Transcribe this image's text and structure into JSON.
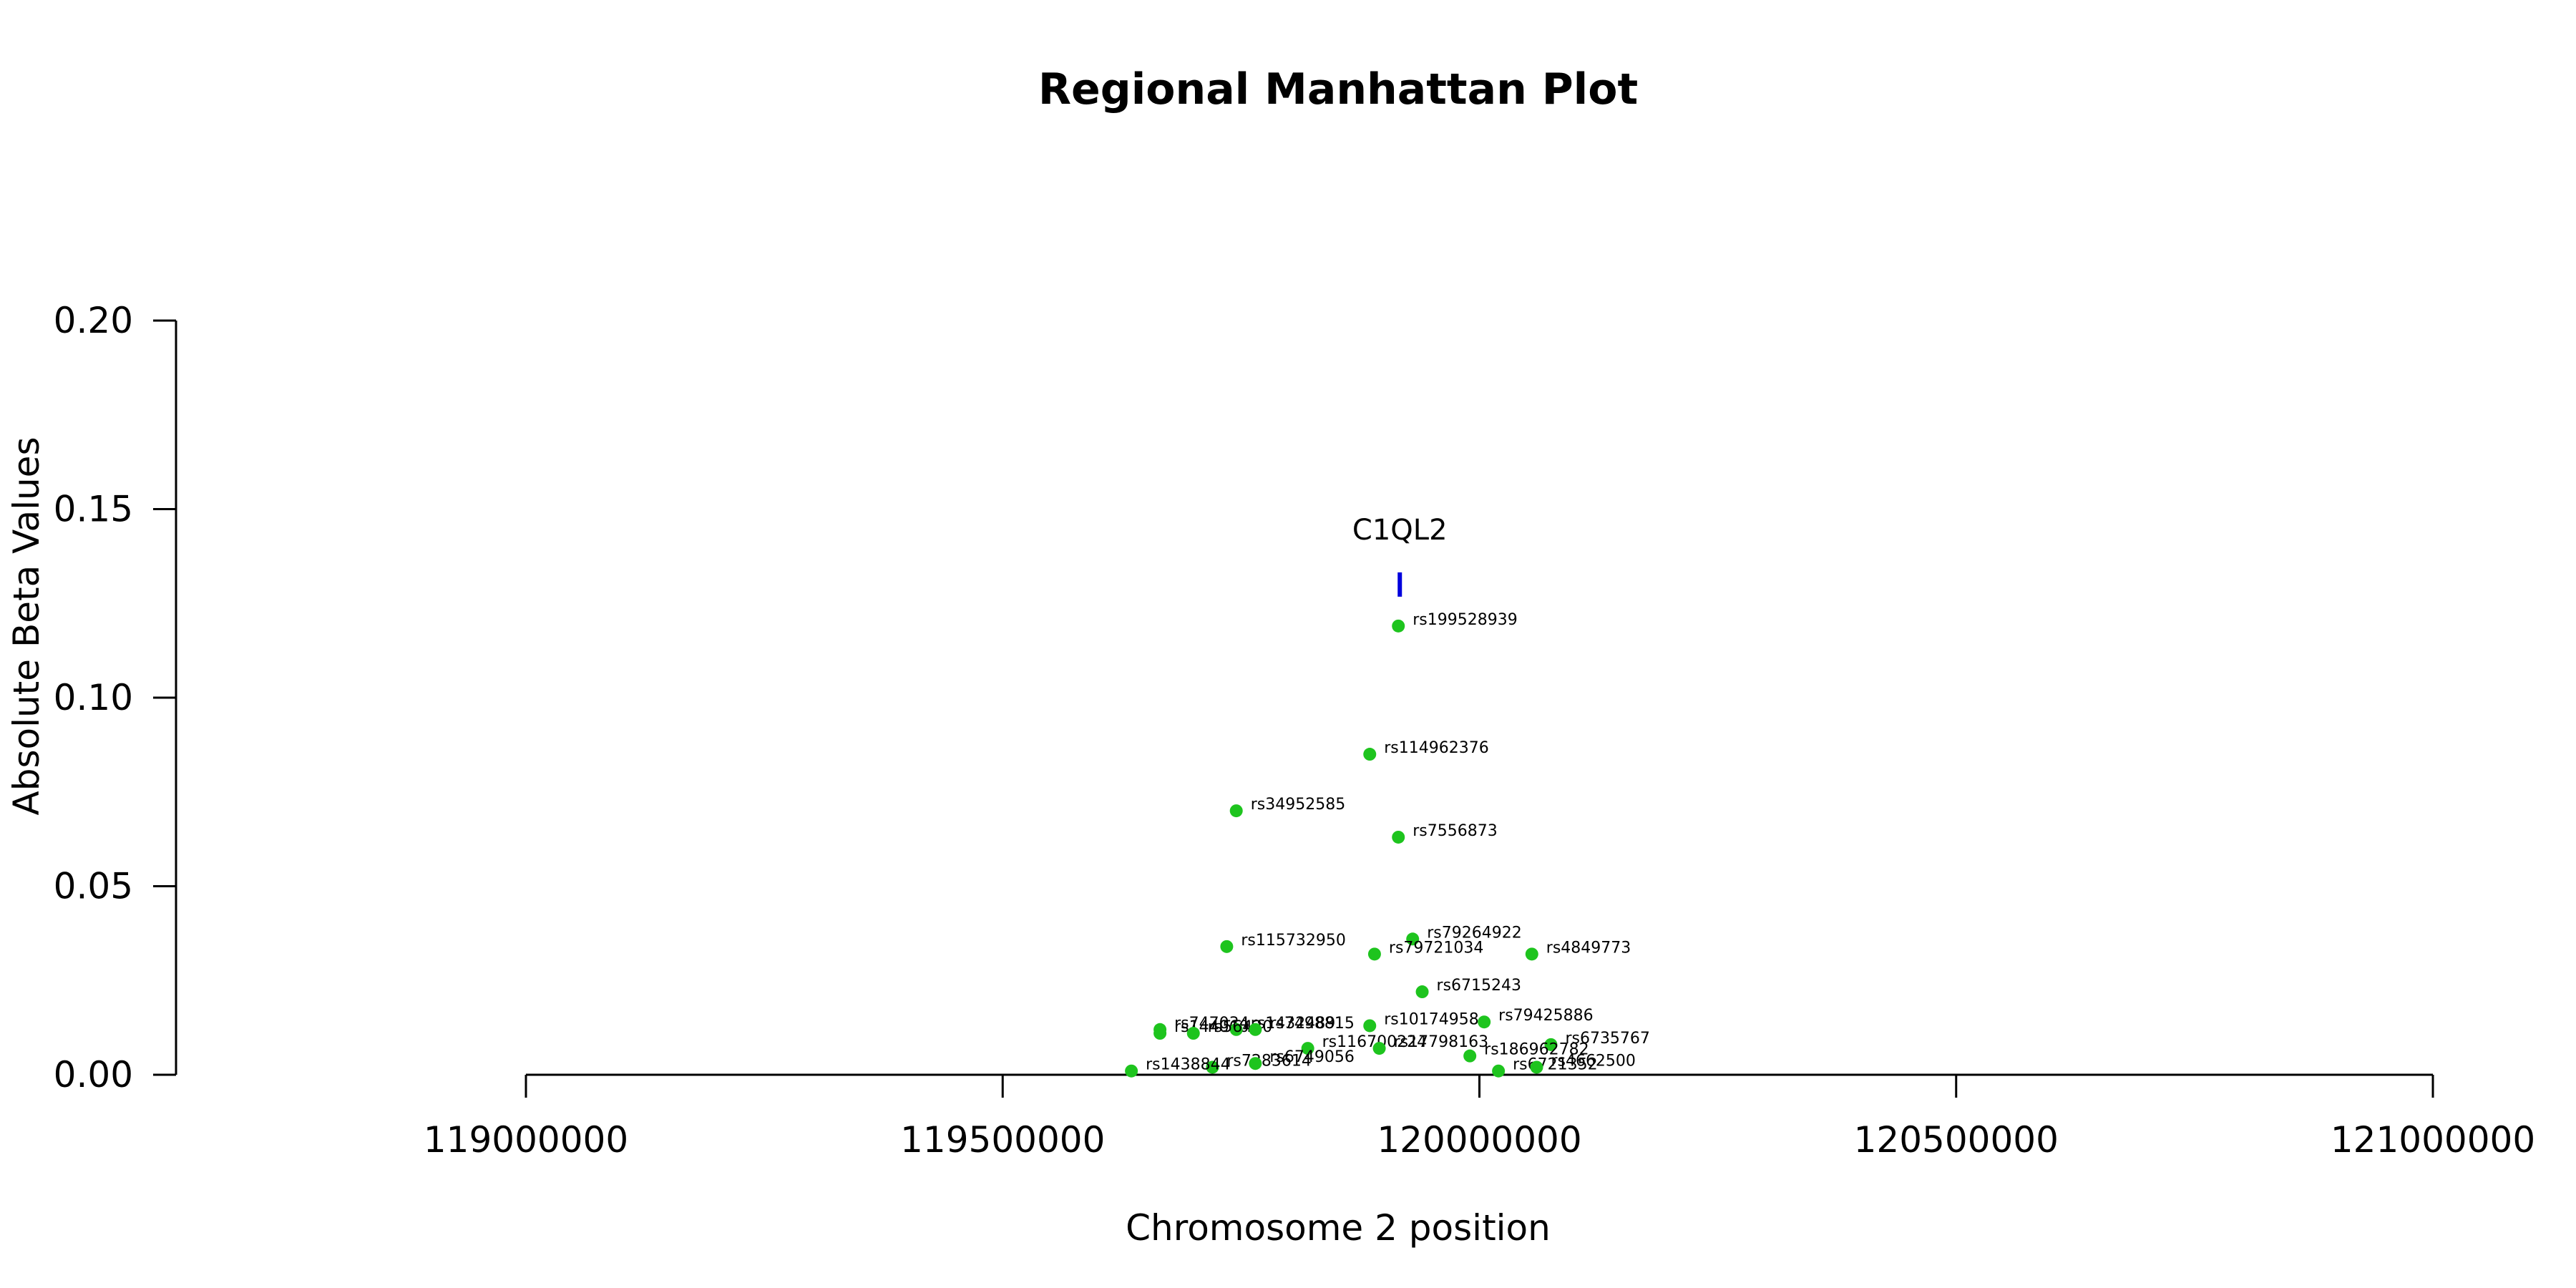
{
  "chart_data": {
    "type": "scatter",
    "title": "Regional Manhattan Plot",
    "xlabel": "Chromosome 2 position",
    "ylabel": "Absolute Beta Values",
    "xlim": [
      119000000,
      121000000
    ],
    "ylim": [
      0,
      0.2
    ],
    "x_ticks": [
      119000000,
      119500000,
      120000000,
      120500000,
      121000000
    ],
    "x_tick_labels": [
      "119000000",
      "119500000",
      "120000000",
      "120500000",
      "121000000"
    ],
    "y_ticks": [
      0.0,
      0.05,
      0.1,
      0.15,
      0.2
    ],
    "y_tick_labels": [
      "0.00",
      "0.05",
      "0.10",
      "0.15",
      "0.20"
    ],
    "point_color": "#1ec41e",
    "gene_color": "#0000dd",
    "gene": {
      "name": "C1QL2",
      "start": 119915000,
      "end": 119918000,
      "y": 0.13
    },
    "points": [
      {
        "snp": "rs199528939",
        "x": 119915000,
        "y": 0.119
      },
      {
        "snp": "rs114962376",
        "x": 119885000,
        "y": 0.085
      },
      {
        "snp": "rs34952585",
        "x": 119745000,
        "y": 0.07
      },
      {
        "snp": "rs7556873",
        "x": 119915000,
        "y": 0.063
      },
      {
        "snp": "rs79264922",
        "x": 119930000,
        "y": 0.036
      },
      {
        "snp": "rs115732950",
        "x": 119735000,
        "y": 0.034
      },
      {
        "snp": "rs79721034",
        "x": 119890000,
        "y": 0.032
      },
      {
        "snp": "rs4849773",
        "x": 120055000,
        "y": 0.032
      },
      {
        "snp": "rs6715243",
        "x": 119940000,
        "y": 0.022
      },
      {
        "snp": "rs747034",
        "x": 119665000,
        "y": 0.012
      },
      {
        "snp": "rs144060",
        "x": 119665000,
        "y": 0.011
      },
      {
        "snp": "rs1432489",
        "x": 119745000,
        "y": 0.012
      },
      {
        "snp": "rs56420",
        "x": 119700000,
        "y": 0.011
      },
      {
        "snp": "rs7498815",
        "x": 119765000,
        "y": 0.012
      },
      {
        "snp": "rs10174958",
        "x": 119885000,
        "y": 0.013
      },
      {
        "snp": "rs79425886",
        "x": 120005000,
        "y": 0.014
      },
      {
        "snp": "rs116700224",
        "x": 119820000,
        "y": 0.007
      },
      {
        "snp": "rs17798163",
        "x": 119895000,
        "y": 0.007
      },
      {
        "snp": "rs6735767",
        "x": 120075000,
        "y": 0.008
      },
      {
        "snp": "rs186962782",
        "x": 119990000,
        "y": 0.005
      },
      {
        "snp": "rs7283614",
        "x": 119720000,
        "y": 0.002
      },
      {
        "snp": "rs6749056",
        "x": 119765000,
        "y": 0.003
      },
      {
        "snp": "rs1438844",
        "x": 119635000,
        "y": 0.001
      },
      {
        "snp": "rs6721352",
        "x": 120020000,
        "y": 0.001
      },
      {
        "snp": "rs4662500",
        "x": 120060000,
        "y": 0.002
      }
    ]
  }
}
